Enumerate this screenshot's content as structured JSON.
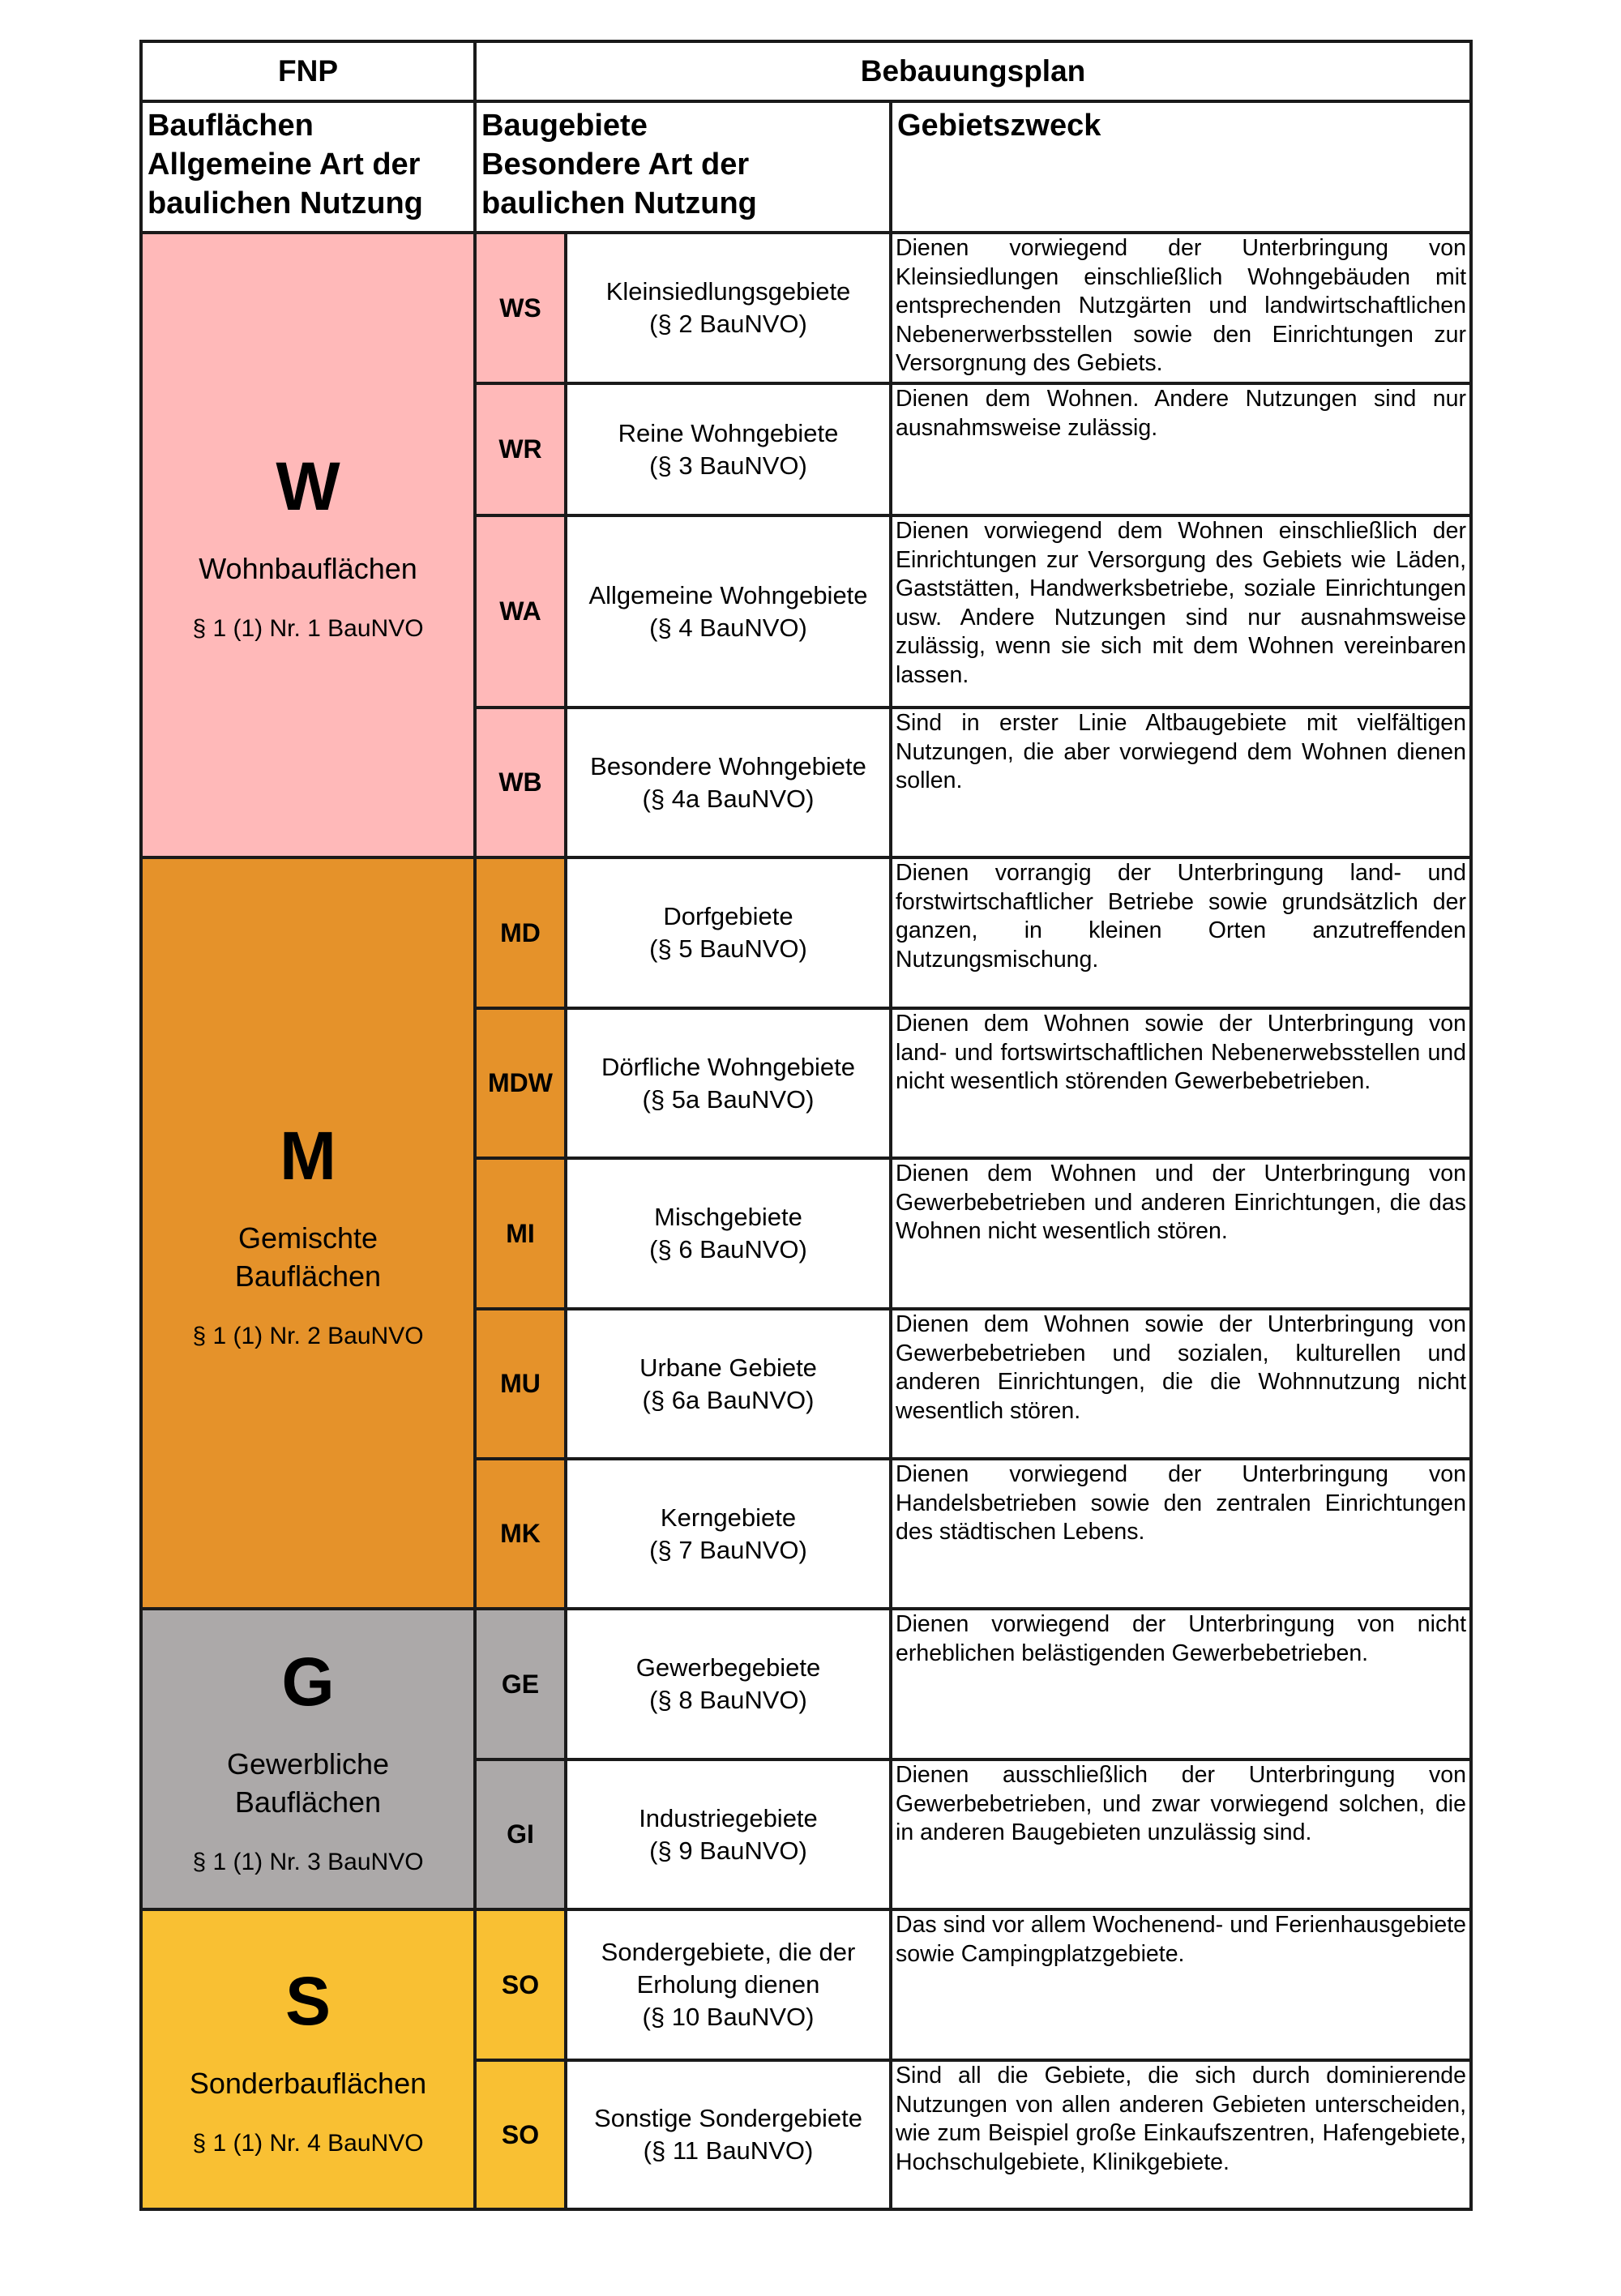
{
  "header": {
    "fnp": "FNP",
    "bebauungsplan": "Bebauungsplan",
    "col1": [
      "Bauflächen",
      "Allgemeine Art der",
      "baulichen Nutzung"
    ],
    "col2": [
      "Baugebiete",
      "Besondere Art der",
      "baulichen Nutzung"
    ],
    "col3": "Gebietszweck"
  },
  "colors": {
    "W": "#ffb9b9",
    "M": "#e5922a",
    "G": "#aca9a9",
    "S": "#f9c033",
    "border": "#1a1a1a"
  },
  "groups": [
    {
      "letter": "W",
      "name": [
        "Wohnbauflächen"
      ],
      "ref": "§ 1 (1) Nr. 1 BauNVO",
      "color": "#ffb9b9",
      "areas": [
        {
          "code": "WS",
          "name": "Kleinsiedlungsgebiete",
          "ref": "(§ 2 BauNVO)",
          "desc": "Dienen vorwiegend der Unterbringung von Kleinsiedlungen einschließlich Wohngebäuden mit entsprechenden Nutzgärten und landwirtschaftlichen Nebenerwerbsstellen sowie den Einrichtungen zur Versorgnung des Gebiets."
        },
        {
          "code": "WR",
          "name": "Reine Wohngebiete",
          "ref": "(§ 3 BauNVO)",
          "desc": "Dienen dem Wohnen. Andere Nutzungen sind nur ausnahmsweise zulässig."
        },
        {
          "code": "WA",
          "name": "Allgemeine Wohngebiete",
          "ref": "(§ 4 BauNVO)",
          "desc": "Dienen vorwiegend dem Wohnen einschließlich der Einrichtungen zur Versorgung des Gebiets wie Läden, Gaststätten, Handwerksbetriebe, soziale Einrichtungen usw. Andere Nutzungen sind nur ausnahmsweise zulässig, wenn sie sich mit dem Wohnen vereinbaren lassen."
        },
        {
          "code": "WB",
          "name": "Besondere Wohngebiete",
          "ref": "(§ 4a BauNVO)",
          "desc": "Sind in erster Linie Altbaugebiete mit vielfältigen Nutzungen, die aber vorwiegend dem Wohnen dienen sollen."
        }
      ]
    },
    {
      "letter": "M",
      "name": [
        "Gemischte",
        "Bauflächen"
      ],
      "ref": "§ 1 (1) Nr. 2 BauNVO",
      "color": "#e5922a",
      "areas": [
        {
          "code": "MD",
          "name": "Dorfgebiete",
          "ref": "(§ 5 BauNVO)",
          "desc": "Dienen vorrangig der Unterbringung land- und forstwirtschaftlicher Betriebe sowie grundsätzlich der ganzen, in kleinen Orten anzutreffenden Nutzungsmischung."
        },
        {
          "code": "MDW",
          "name": "Dörfliche Wohngebiete",
          "ref": "(§ 5a BauNVO)",
          "desc": "Dienen dem Wohnen sowie der Unterbringung von land- und fortswirtschaftlichen Nebenerwebsstellen und nicht wesentlich störenden Gewerbebetrieben."
        },
        {
          "code": "MI",
          "name": "Mischgebiete",
          "ref": "(§ 6 BauNVO)",
          "desc": "Dienen dem Wohnen und der Unterbringung von Gewerbebetrieben und anderen Einrichtungen, die das Wohnen nicht wesentlich stören."
        },
        {
          "code": "MU",
          "name": "Urbane Gebiete",
          "ref": "(§ 6a BauNVO)",
          "desc": "Dienen dem Wohnen sowie der Unterbringung von Gewerbebetrieben und sozialen, kulturellen und anderen Einrichtungen, die die Wohnnutzung nicht wesentlich stören."
        },
        {
          "code": "MK",
          "name": "Kerngebiete",
          "ref": "(§ 7 BauNVO)",
          "desc": "Dienen vorwiegend der Unterbringung von Handelsbetrieben sowie den zentralen Einrichtungen des städtischen Lebens."
        }
      ]
    },
    {
      "letter": "G",
      "name": [
        "Gewerbliche",
        "Bauflächen"
      ],
      "ref": "§ 1 (1) Nr. 3 BauNVO",
      "color": "#aca9a9",
      "areas": [
        {
          "code": "GE",
          "name": "Gewerbegebiete",
          "ref": "(§ 8 BauNVO)",
          "desc": "Dienen vorwiegend der Unterbringung von nicht erheblichen belästigenden Gewerbebetrieben."
        },
        {
          "code": "GI",
          "name": "Industriegebiete",
          "ref": "(§ 9 BauNVO)",
          "desc": "Dienen ausschließlich der Unterbringung von Gewerbebetrieben, und zwar vorwiegend solchen, die in anderen Baugebieten unzulässig sind."
        }
      ]
    },
    {
      "letter": "S",
      "name": [
        "Sonderbauflächen"
      ],
      "ref": "§ 1 (1) Nr. 4 BauNVO",
      "color": "#f9c033",
      "areas": [
        {
          "code": "SO",
          "name": "Sondergebiete, die der Erholung dienen",
          "ref": "(§ 10 BauNVO)",
          "desc": "Das sind vor allem Wochenend- und Ferienhausgebiete sowie Campingplatzgebiete."
        },
        {
          "code": "SO",
          "name": "Sonstige Sondergebiete",
          "ref": "(§ 11 BauNVO)",
          "desc": "Sind all die Gebiete, die sich durch dominierende Nutzungen von allen anderen Gebieten unterscheiden, wie zum Beispiel große Einkaufszentren, Hafengebiete, Hochschulgebiete, Klinikgebiete."
        }
      ]
    }
  ]
}
